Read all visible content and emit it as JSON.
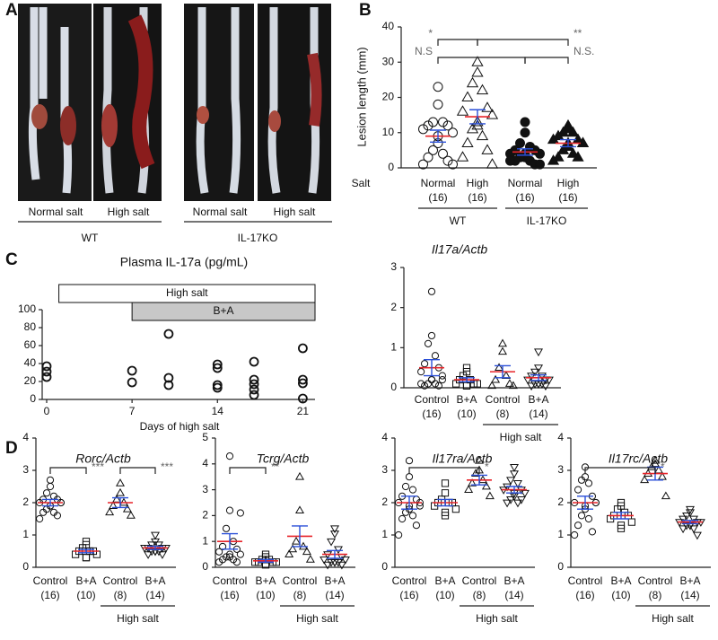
{
  "panel_labels": [
    "A",
    "B",
    "C",
    "D"
  ],
  "panel_a": {
    "images": [
      "Normal salt",
      "High salt",
      "Normal salt",
      "High salt"
    ],
    "groups": [
      "WT",
      "IL-17KO"
    ]
  },
  "chart_data": [
    {
      "type": "dotplot",
      "ylabel": "Lesion length (mm)",
      "ylim": [
        0,
        40
      ],
      "yticks": [
        0,
        10,
        20,
        30,
        40
      ],
      "row_label": "Salt",
      "groups": [
        {
          "label": "Normal",
          "n": "(16)",
          "marker": "circle",
          "filled": false,
          "values": [
            23,
            18,
            13,
            13,
            12,
            12,
            11,
            10,
            9,
            7,
            5,
            4,
            3,
            2,
            1,
            1
          ],
          "mean": 9,
          "sem": 1.7
        },
        {
          "label": "High",
          "n": "(16)",
          "marker": "triangle",
          "filled": false,
          "values": [
            30,
            27,
            24,
            22,
            20,
            17,
            16,
            15,
            13,
            12,
            11,
            9,
            7,
            5,
            3,
            1
          ],
          "mean": 14.5,
          "sem": 2
        },
        {
          "label": "Normal",
          "n": "(16)",
          "marker": "circle",
          "filled": true,
          "values": [
            13,
            10,
            7,
            6,
            5,
            5,
            4,
            4,
            4,
            3,
            3,
            2,
            2,
            1,
            2,
            1
          ],
          "mean": 4.5,
          "sem": 0.9
        },
        {
          "label": "High",
          "n": "(16)",
          "marker": "triangle",
          "filled": true,
          "values": [
            12,
            11,
            10,
            10,
            9,
            8,
            8,
            7,
            7,
            6,
            5,
            4,
            3,
            3,
            2,
            7
          ],
          "mean": 7,
          "sem": 1
        }
      ],
      "comparisons": [
        {
          "between": [
            0,
            1
          ],
          "label": "*"
        },
        {
          "between": [
            1,
            3
          ],
          "label": "**"
        },
        {
          "between": [
            0,
            2
          ],
          "label": "N.S"
        },
        {
          "between": [
            2,
            3
          ],
          "label": "N.S."
        }
      ],
      "sets": [
        {
          "label": "WT",
          "span": [
            0,
            1
          ]
        },
        {
          "label": "IL-17KO",
          "span": [
            2,
            3
          ]
        }
      ]
    },
    {
      "type": "scatter",
      "title": "Plasma IL-17a (pg/mL)",
      "xlabel": "Days of high salt",
      "x": [
        0,
        0,
        0,
        7,
        7,
        10,
        10,
        10,
        14,
        14,
        14,
        14,
        17,
        17,
        17,
        17,
        17,
        21,
        21,
        21,
        21
      ],
      "values": [
        37,
        31,
        25,
        32,
        19,
        73,
        24,
        16,
        39,
        35,
        16,
        13,
        42,
        22,
        17,
        11,
        5,
        57,
        22,
        18,
        1
      ],
      "xlim": [
        0,
        22
      ],
      "xticks": [
        0,
        7,
        14,
        21
      ],
      "ylim": [
        0,
        100
      ],
      "yticks": [
        0,
        20,
        40,
        60,
        80,
        100
      ],
      "treatments": [
        {
          "label": "High salt",
          "start": 1,
          "color": "#ffffff"
        },
        {
          "label": "B+A",
          "start": 7,
          "color": "#c8c8c8"
        }
      ]
    },
    {
      "type": "dotplot",
      "title": "Il17a/Actb",
      "ylim": [
        0,
        3
      ],
      "yticks": [
        0,
        1,
        2,
        3
      ],
      "groups": [
        {
          "label": "Control",
          "n": "(16)",
          "marker": "circle",
          "filled": false,
          "values": [
            2.4,
            1.3,
            1.1,
            0.8,
            0.6,
            0.5,
            0.4,
            0.3,
            0.2,
            0.2,
            0.1,
            0.1,
            0.05,
            0.05,
            0.1,
            0.2
          ],
          "mean": 0.5,
          "sem": 0.2
        },
        {
          "label": "B+A",
          "n": "(10)",
          "marker": "square",
          "filled": false,
          "values": [
            0.5,
            0.4,
            0.3,
            0.2,
            0.2,
            0.1,
            0.1,
            0.1,
            0.05,
            0.05
          ],
          "mean": 0.2,
          "sem": 0.05
        },
        {
          "label": "Control",
          "n": "(8)",
          "marker": "triangle",
          "filled": false,
          "values": [
            1.1,
            0.9,
            0.5,
            0.3,
            0.2,
            0.1,
            0.05,
            0.05
          ],
          "mean": 0.4,
          "sem": 0.15
        },
        {
          "label": "B+A",
          "n": "(14)",
          "marker": "invtriangle",
          "filled": false,
          "values": [
            0.9,
            0.5,
            0.4,
            0.3,
            0.3,
            0.2,
            0.2,
            0.2,
            0.1,
            0.1,
            0.1,
            0.1,
            0.05,
            0.05
          ],
          "mean": 0.25,
          "sem": 0.07
        }
      ],
      "comparisons": [],
      "sets": [
        {
          "label": "High salt",
          "span": [
            2,
            3
          ]
        }
      ]
    },
    {
      "type": "dotplot",
      "title": "Rorc/Actb",
      "ylim": [
        0,
        4
      ],
      "yticks": [
        0,
        1,
        2,
        3,
        4
      ],
      "groups": [
        {
          "label": "Control",
          "n": "(16)",
          "marker": "circle",
          "filled": false,
          "values": [
            2.7,
            2.5,
            2.3,
            2.2,
            2.1,
            2.1,
            2.0,
            2.0,
            1.9,
            1.9,
            1.8,
            1.7,
            1.7,
            1.6,
            1.5,
            2.0
          ],
          "mean": 2.0,
          "sem": 0.1
        },
        {
          "label": "B+A",
          "n": "(10)",
          "marker": "square",
          "filled": false,
          "values": [
            0.8,
            0.7,
            0.6,
            0.5,
            0.5,
            0.5,
            0.4,
            0.4,
            0.3,
            0.3
          ],
          "mean": 0.5,
          "sem": 0.05
        },
        {
          "label": "Control",
          "n": "(8)",
          "marker": "triangle",
          "filled": false,
          "values": [
            2.6,
            2.3,
            2.1,
            2.0,
            1.9,
            1.8,
            1.7,
            1.6
          ],
          "mean": 2.0,
          "sem": 0.15
        },
        {
          "label": "B+A",
          "n": "(14)",
          "marker": "invtriangle",
          "filled": false,
          "values": [
            1.0,
            0.8,
            0.7,
            0.7,
            0.6,
            0.6,
            0.6,
            0.6,
            0.5,
            0.5,
            0.5,
            0.5,
            0.4,
            0.4
          ],
          "mean": 0.6,
          "sem": 0.05
        }
      ],
      "comparisons": [
        {
          "between": [
            0,
            1
          ],
          "label": "***"
        },
        {
          "between": [
            2,
            3
          ],
          "label": "***"
        }
      ],
      "sets": [
        {
          "label": "High salt",
          "span": [
            2,
            3
          ]
        }
      ]
    },
    {
      "type": "dotplot",
      "title": "Tcrg/Actb",
      "ylim": [
        0,
        5
      ],
      "yticks": [
        0,
        1,
        2,
        3,
        4,
        5
      ],
      "groups": [
        {
          "label": "Control",
          "n": "(16)",
          "marker": "circle",
          "filled": false,
          "values": [
            4.3,
            2.2,
            1.5,
            1.0,
            0.8,
            0.7,
            0.6,
            0.5,
            0.5,
            0.4,
            0.4,
            0.3,
            0.3,
            0.2,
            0.2,
            2.1
          ],
          "mean": 1.0,
          "sem": 0.3
        },
        {
          "label": "B+A",
          "n": "(10)",
          "marker": "square",
          "filled": false,
          "values": [
            0.5,
            0.4,
            0.3,
            0.3,
            0.2,
            0.2,
            0.2,
            0.2,
            0.1,
            0.1
          ],
          "mean": 0.25,
          "sem": 0.05
        },
        {
          "label": "Control",
          "n": "(8)",
          "marker": "triangle",
          "filled": false,
          "values": [
            3.5,
            2.2,
            1.0,
            0.8,
            0.7,
            0.6,
            0.5,
            0.3
          ],
          "mean": 1.2,
          "sem": 0.4
        },
        {
          "label": "B+A",
          "n": "(14)",
          "marker": "invtriangle",
          "filled": false,
          "values": [
            1.5,
            1.3,
            1.0,
            0.7,
            0.5,
            0.4,
            0.3,
            0.3,
            0.2,
            0.2,
            0.2,
            0.2,
            0.1,
            0.1
          ],
          "mean": 0.5,
          "sem": 0.15
        }
      ],
      "comparisons": [
        {
          "between": [
            0,
            1
          ],
          "label": "**"
        }
      ],
      "sets": [
        {
          "label": "High salt",
          "span": [
            2,
            3
          ]
        }
      ]
    },
    {
      "type": "dotplot",
      "title": "Il17ra/Actb",
      "ylim": [
        0,
        4
      ],
      "yticks": [
        0,
        1,
        2,
        3,
        4
      ],
      "groups": [
        {
          "label": "Control",
          "n": "(16)",
          "marker": "circle",
          "filled": false,
          "values": [
            3.3,
            2.8,
            2.5,
            2.4,
            2.2,
            2.1,
            2.0,
            2.0,
            1.9,
            1.8,
            1.7,
            1.6,
            1.5,
            1.3,
            1.0,
            1.9
          ],
          "mean": 2.0,
          "sem": 0.2
        },
        {
          "label": "B+A",
          "n": "(10)",
          "marker": "square",
          "filled": false,
          "values": [
            2.6,
            2.3,
            2.1,
            2.0,
            2.0,
            2.0,
            1.9,
            1.8,
            1.7,
            1.6
          ],
          "mean": 2.0,
          "sem": 0.1
        },
        {
          "label": "Control",
          "n": "(8)",
          "marker": "triangle",
          "filled": false,
          "values": [
            3.3,
            3.0,
            2.9,
            2.7,
            2.6,
            2.5,
            2.4,
            2.2
          ],
          "mean": 2.7,
          "sem": 0.15
        },
        {
          "label": "B+A",
          "n": "(14)",
          "marker": "invtriangle",
          "filled": false,
          "values": [
            3.1,
            2.9,
            2.7,
            2.6,
            2.5,
            2.4,
            2.4,
            2.3,
            2.3,
            2.2,
            2.1,
            2.0,
            2.0,
            2.1
          ],
          "mean": 2.4,
          "sem": 0.1
        }
      ],
      "comparisons": [
        {
          "between": [
            0,
            2
          ],
          "label": "*"
        }
      ],
      "sets": [
        {
          "label": "High salt",
          "span": [
            2,
            3
          ]
        }
      ]
    },
    {
      "type": "dotplot",
      "title": "Il17rc/Actb",
      "ylim": [
        0,
        4
      ],
      "yticks": [
        0,
        1,
        2,
        3,
        4
      ],
      "groups": [
        {
          "label": "Control",
          "n": "(16)",
          "marker": "circle",
          "filled": false,
          "values": [
            3.1,
            2.8,
            2.7,
            2.6,
            2.4,
            2.2,
            2.0,
            2.0,
            1.9,
            1.8,
            1.6,
            1.5,
            1.3,
            1.1,
            1.0,
            2.0
          ],
          "mean": 2.0,
          "sem": 0.2
        },
        {
          "label": "B+A",
          "n": "(10)",
          "marker": "square",
          "filled": false,
          "values": [
            2.0,
            1.9,
            1.8,
            1.7,
            1.6,
            1.6,
            1.5,
            1.4,
            1.3,
            1.2
          ],
          "mean": 1.6,
          "sem": 0.1
        },
        {
          "label": "Control",
          "n": "(8)",
          "marker": "triangle",
          "filled": false,
          "values": [
            3.3,
            3.2,
            3.1,
            3.0,
            2.9,
            2.8,
            2.7,
            2.2
          ],
          "mean": 2.9,
          "sem": 0.2
        },
        {
          "label": "B+A",
          "n": "(14)",
          "marker": "invtriangle",
          "filled": false,
          "values": [
            1.8,
            1.7,
            1.6,
            1.5,
            1.5,
            1.4,
            1.4,
            1.4,
            1.3,
            1.3,
            1.3,
            1.2,
            1.2,
            1.0
          ],
          "mean": 1.4,
          "sem": 0.05
        }
      ],
      "comparisons": [
        {
          "between": [
            0,
            2
          ],
          "label": "*"
        }
      ],
      "sets": [
        {
          "label": "High salt",
          "span": [
            2,
            3
          ]
        }
      ]
    }
  ]
}
